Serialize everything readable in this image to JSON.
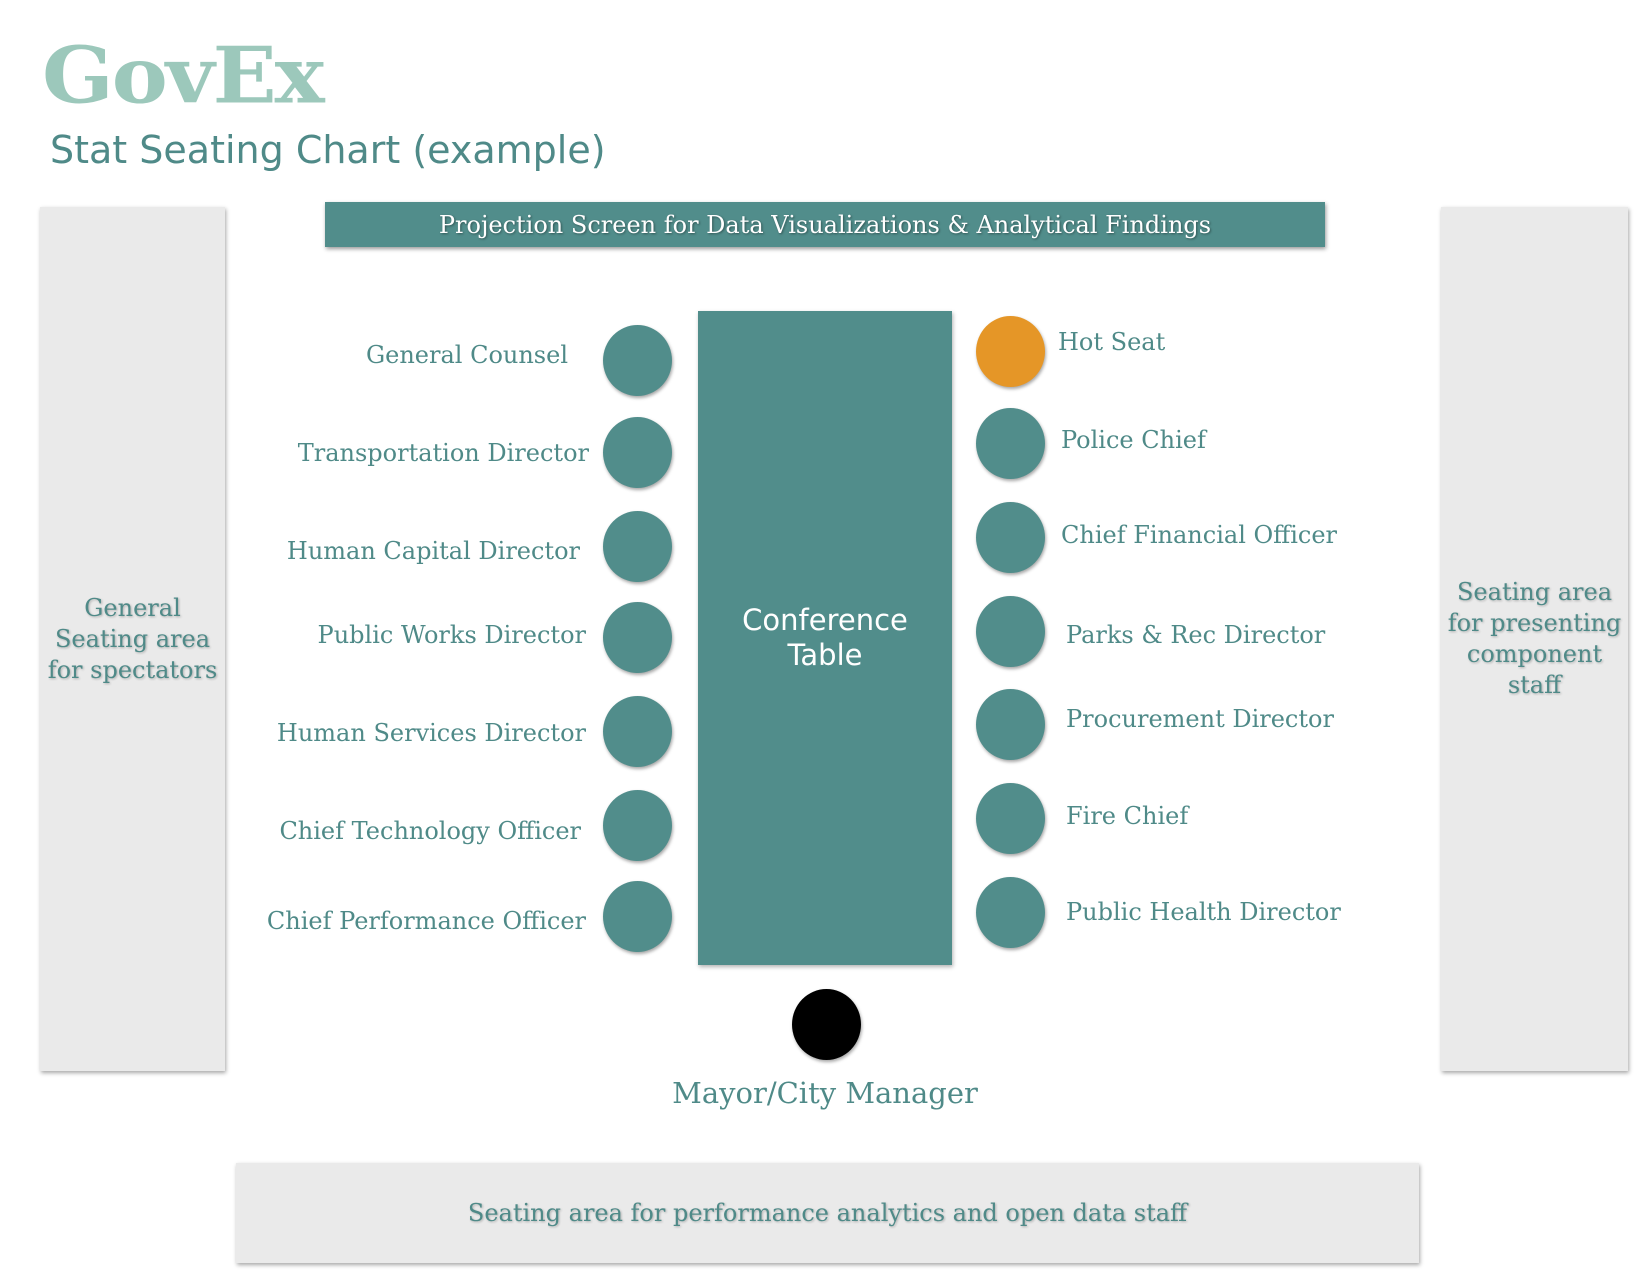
{
  "header": {
    "logo": "GovEx",
    "subtitle": "Stat Seating Chart (example)"
  },
  "screen": {
    "label": "Projection Screen for Data Visualizations & Analytical Findings"
  },
  "table": {
    "line1": "Conference",
    "line2": "Table"
  },
  "left_panel": {
    "line1": "General",
    "line2": "Seating area",
    "line3": "for spectators"
  },
  "right_panel": {
    "line1": "Seating area",
    "line2": "for presenting",
    "line3": "component",
    "line4": "staff"
  },
  "bottom_panel": {
    "label": "Seating area for performance analytics and open data staff"
  },
  "left_seats": [
    "General Counsel",
    "Transportation Director",
    "Human Capital Director",
    "Public Works Director",
    "Human Services Director",
    "Chief Technology Officer",
    "Chief Performance Officer"
  ],
  "right_seats": [
    "Hot Seat",
    "Police Chief",
    "Chief Financial Officer",
    "Parks & Rec Director",
    "Procurement Director",
    "Fire Chief",
    "Public Health Director"
  ],
  "head_seat": {
    "label": "Mayor/City Manager"
  },
  "colors": {
    "teal": "#518d8b",
    "hot_seat": "#e59627",
    "head_seat": "#000000",
    "logo": "#9cc8bb",
    "panel": "#eaeaea"
  }
}
